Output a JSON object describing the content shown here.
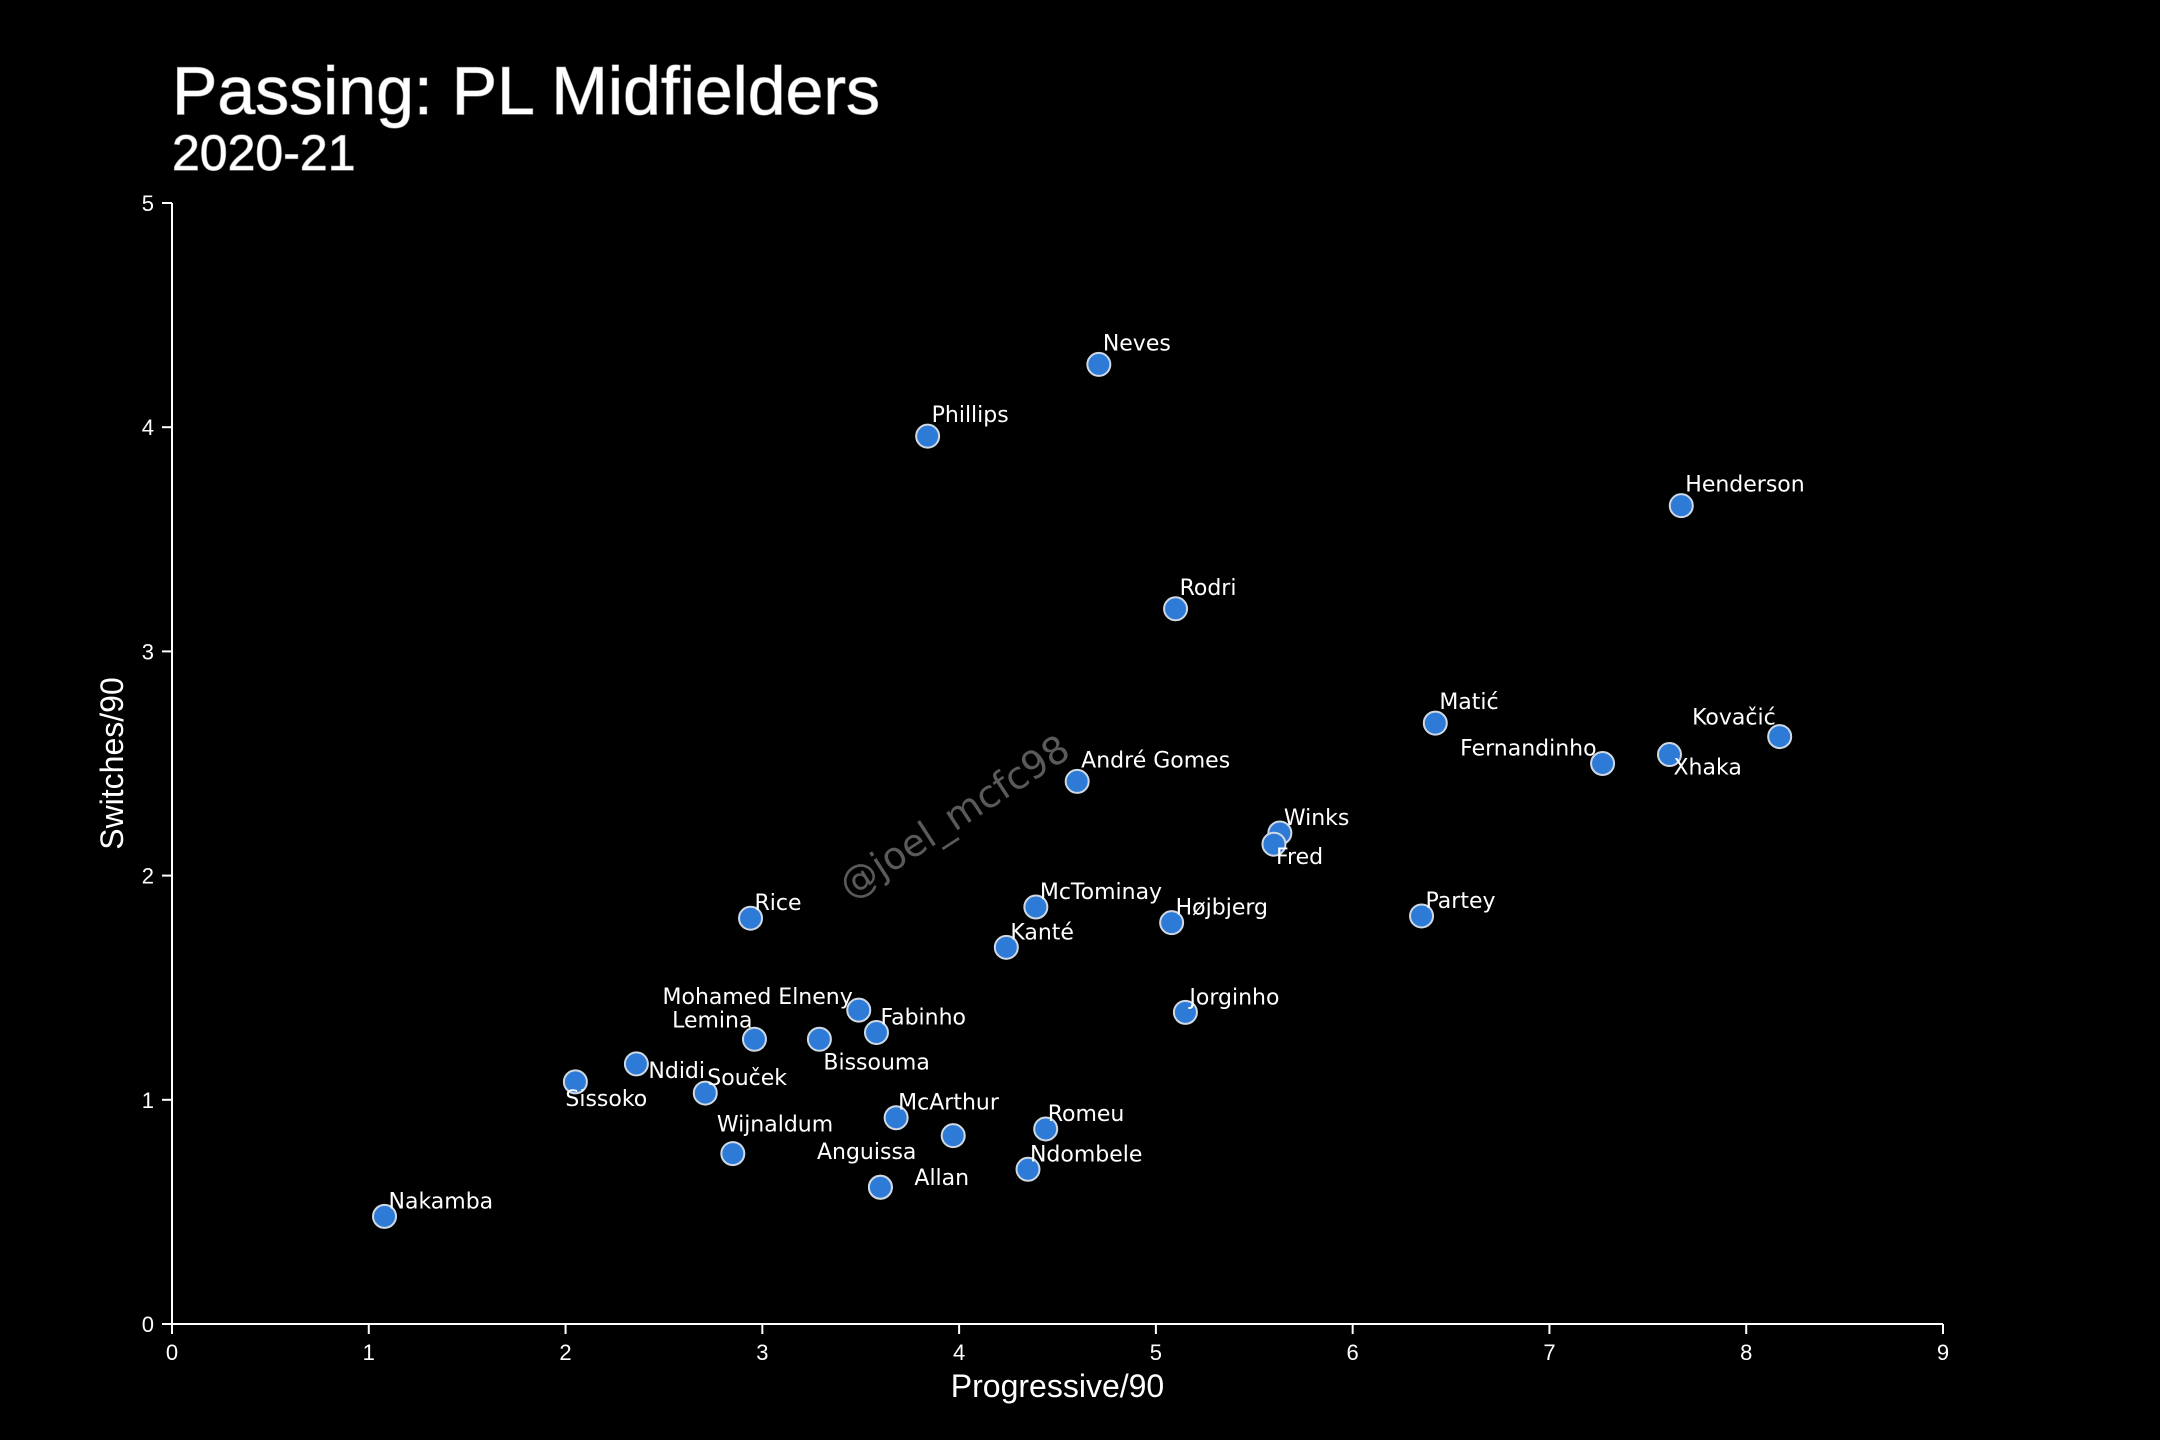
{
  "chart_data": {
    "type": "scatter",
    "title": "Passing: PL Midfielders",
    "subtitle": "2020-21",
    "xlabel": "Progressive/90",
    "ylabel": "Switches/90",
    "xlim": [
      0,
      9
    ],
    "ylim": [
      0,
      5
    ],
    "xticks": [
      "0",
      "1",
      "2",
      "3",
      "4",
      "5",
      "6",
      "7",
      "8",
      "9"
    ],
    "yticks": [
      "0",
      "1",
      "2",
      "3",
      "4",
      "5"
    ],
    "grid": false,
    "watermark": "@joel_mcfc98",
    "colors": {
      "background": "#000000",
      "marker": "#2d7bd6",
      "marker_edge": "#cfd8e3",
      "text": "#ffffff"
    },
    "points": [
      {
        "label": "Neves",
        "x": 4.71,
        "y": 4.28
      },
      {
        "label": "Phillips",
        "x": 3.84,
        "y": 3.96
      },
      {
        "label": "Henderson",
        "x": 7.67,
        "y": 3.65
      },
      {
        "label": "Rodri",
        "x": 5.1,
        "y": 3.19
      },
      {
        "label": "Matić",
        "x": 6.42,
        "y": 2.68
      },
      {
        "label": "Kovačić",
        "x": 8.17,
        "y": 2.62
      },
      {
        "label": "Xhaka",
        "x": 7.61,
        "y": 2.54
      },
      {
        "label": "Fernandinho",
        "x": 7.27,
        "y": 2.5
      },
      {
        "label": "André Gomes",
        "x": 4.6,
        "y": 2.42
      },
      {
        "label": "Winks",
        "x": 5.63,
        "y": 2.19
      },
      {
        "label": "Fred",
        "x": 5.6,
        "y": 2.14
      },
      {
        "label": "McTominay",
        "x": 4.39,
        "y": 1.86
      },
      {
        "label": "Partey",
        "x": 6.35,
        "y": 1.82
      },
      {
        "label": "Rice",
        "x": 2.94,
        "y": 1.81
      },
      {
        "label": "Højbjerg",
        "x": 5.08,
        "y": 1.79
      },
      {
        "label": "Kanté",
        "x": 4.24,
        "y": 1.68
      },
      {
        "label": "Mohamed Elneny",
        "x": 3.49,
        "y": 1.4
      },
      {
        "label": "Jorginho",
        "x": 5.15,
        "y": 1.39
      },
      {
        "label": "Fabinho",
        "x": 3.58,
        "y": 1.3
      },
      {
        "label": "Bissouma",
        "x": 3.29,
        "y": 1.27
      },
      {
        "label": "Lemina",
        "x": 2.96,
        "y": 1.27
      },
      {
        "label": "Ndidi",
        "x": 2.36,
        "y": 1.16
      },
      {
        "label": "Sissoko",
        "x": 2.05,
        "y": 1.08
      },
      {
        "label": "Souček",
        "x": 2.71,
        "y": 1.03
      },
      {
        "label": "McArthur",
        "x": 3.68,
        "y": 0.92
      },
      {
        "label": "Romeu",
        "x": 4.44,
        "y": 0.87
      },
      {
        "label": "",
        "x": 3.97,
        "y": 0.84
      },
      {
        "label": "Wijnaldum",
        "x": 2.85,
        "y": 0.76
      },
      {
        "label": "Ndombele",
        "x": 4.35,
        "y": 0.69
      },
      {
        "label": "Anguissa",
        "x": 3.6,
        "y": 0.61
      },
      {
        "label": "Allan",
        "x": 3.6,
        "y": 0.61
      },
      {
        "label": "Nakamba",
        "x": 1.08,
        "y": 0.48
      }
    ]
  }
}
